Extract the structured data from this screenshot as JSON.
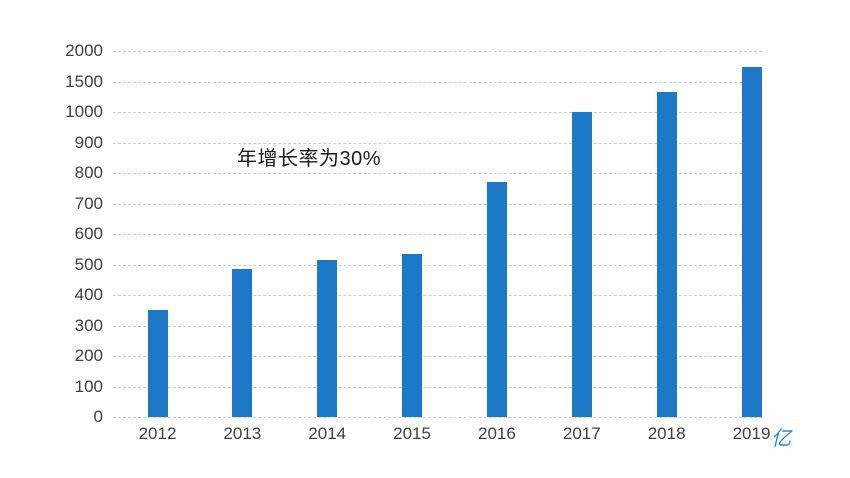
{
  "chart_data": {
    "type": "bar",
    "title": "",
    "xlabel": "",
    "ylabel": "",
    "categories": [
      "2012",
      "2013",
      "2014",
      "2015",
      "2016",
      "2017",
      "2018",
      "2019"
    ],
    "values": [
      350,
      485,
      515,
      535,
      770,
      1000,
      1330,
      1740
    ],
    "yticks": [
      0,
      100,
      200,
      300,
      400,
      500,
      600,
      700,
      800,
      900,
      1000,
      1500,
      2000
    ],
    "y_axis": {
      "scale": "non-linear",
      "note": "ticks evenly spaced: steps of 100 up to 1000, then steps of 500 to 2000",
      "range": [
        0,
        2000
      ]
    },
    "grid": "horizontal-dashed",
    "legend": "none",
    "annotation": "年增长率为30%",
    "unit_label": "亿",
    "colors": {
      "bar": "#1b79c8",
      "unit_label": "#2f87d8",
      "grid": "#cccccc",
      "tick_label": "#404040",
      "annotation": "#1a1a1a",
      "background": "#ffffff"
    }
  }
}
